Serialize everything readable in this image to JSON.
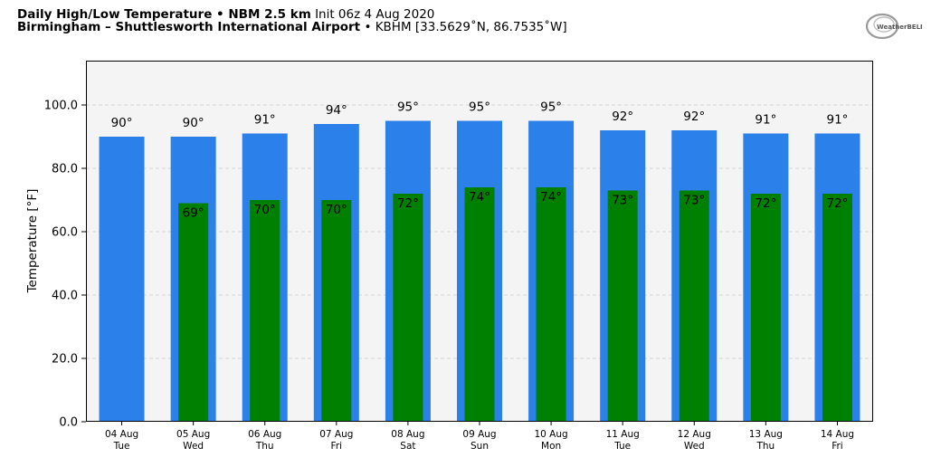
{
  "header": {
    "title_bold": "Daily High/Low Temperature • NBM 2.5 km",
    "title_init": "Init 06z 4 Aug 2020",
    "location_bold": "Birmingham – Shuttlesworth International Airport",
    "location_rest": "• KBHM [33.5629˚N, 86.7535˚W]",
    "logo_text": "WeatherBELL"
  },
  "colors": {
    "high": "#2b80ea",
    "low": "#008000",
    "plot_bg": "#f4f4f4",
    "grid": "#c8c8c8"
  },
  "chart_data": {
    "type": "bar",
    "ylabel": "Temperature [°F]",
    "ylim": [
      0,
      114
    ],
    "yticks": [
      "0.0",
      "20.0",
      "40.0",
      "60.0",
      "80.0",
      "100.0"
    ],
    "ytick_values": [
      0,
      20,
      40,
      60,
      80,
      100
    ],
    "grid": true,
    "categories": [
      {
        "date": "04 Aug",
        "day": "Tue"
      },
      {
        "date": "05 Aug",
        "day": "Wed"
      },
      {
        "date": "06 Aug",
        "day": "Thu"
      },
      {
        "date": "07 Aug",
        "day": "Fri"
      },
      {
        "date": "08 Aug",
        "day": "Sat"
      },
      {
        "date": "09 Aug",
        "day": "Sun"
      },
      {
        "date": "10 Aug",
        "day": "Mon"
      },
      {
        "date": "11 Aug",
        "day": "Tue"
      },
      {
        "date": "12 Aug",
        "day": "Wed"
      },
      {
        "date": "13 Aug",
        "day": "Thu"
      },
      {
        "date": "14 Aug",
        "day": "Fri"
      }
    ],
    "series": [
      {
        "key": "high",
        "values": [
          90,
          90,
          91,
          94,
          95,
          95,
          95,
          92,
          92,
          91,
          91
        ],
        "labels": [
          "90°",
          "90°",
          "91°",
          "94°",
          "95°",
          "95°",
          "95°",
          "92°",
          "92°",
          "91°",
          "91°"
        ]
      },
      {
        "key": "low",
        "values": [
          null,
          69,
          70,
          70,
          72,
          74,
          74,
          73,
          73,
          72,
          72
        ],
        "labels": [
          "",
          "69°",
          "70°",
          "70°",
          "72°",
          "74°",
          "74°",
          "73°",
          "73°",
          "72°",
          "72°"
        ]
      }
    ]
  }
}
